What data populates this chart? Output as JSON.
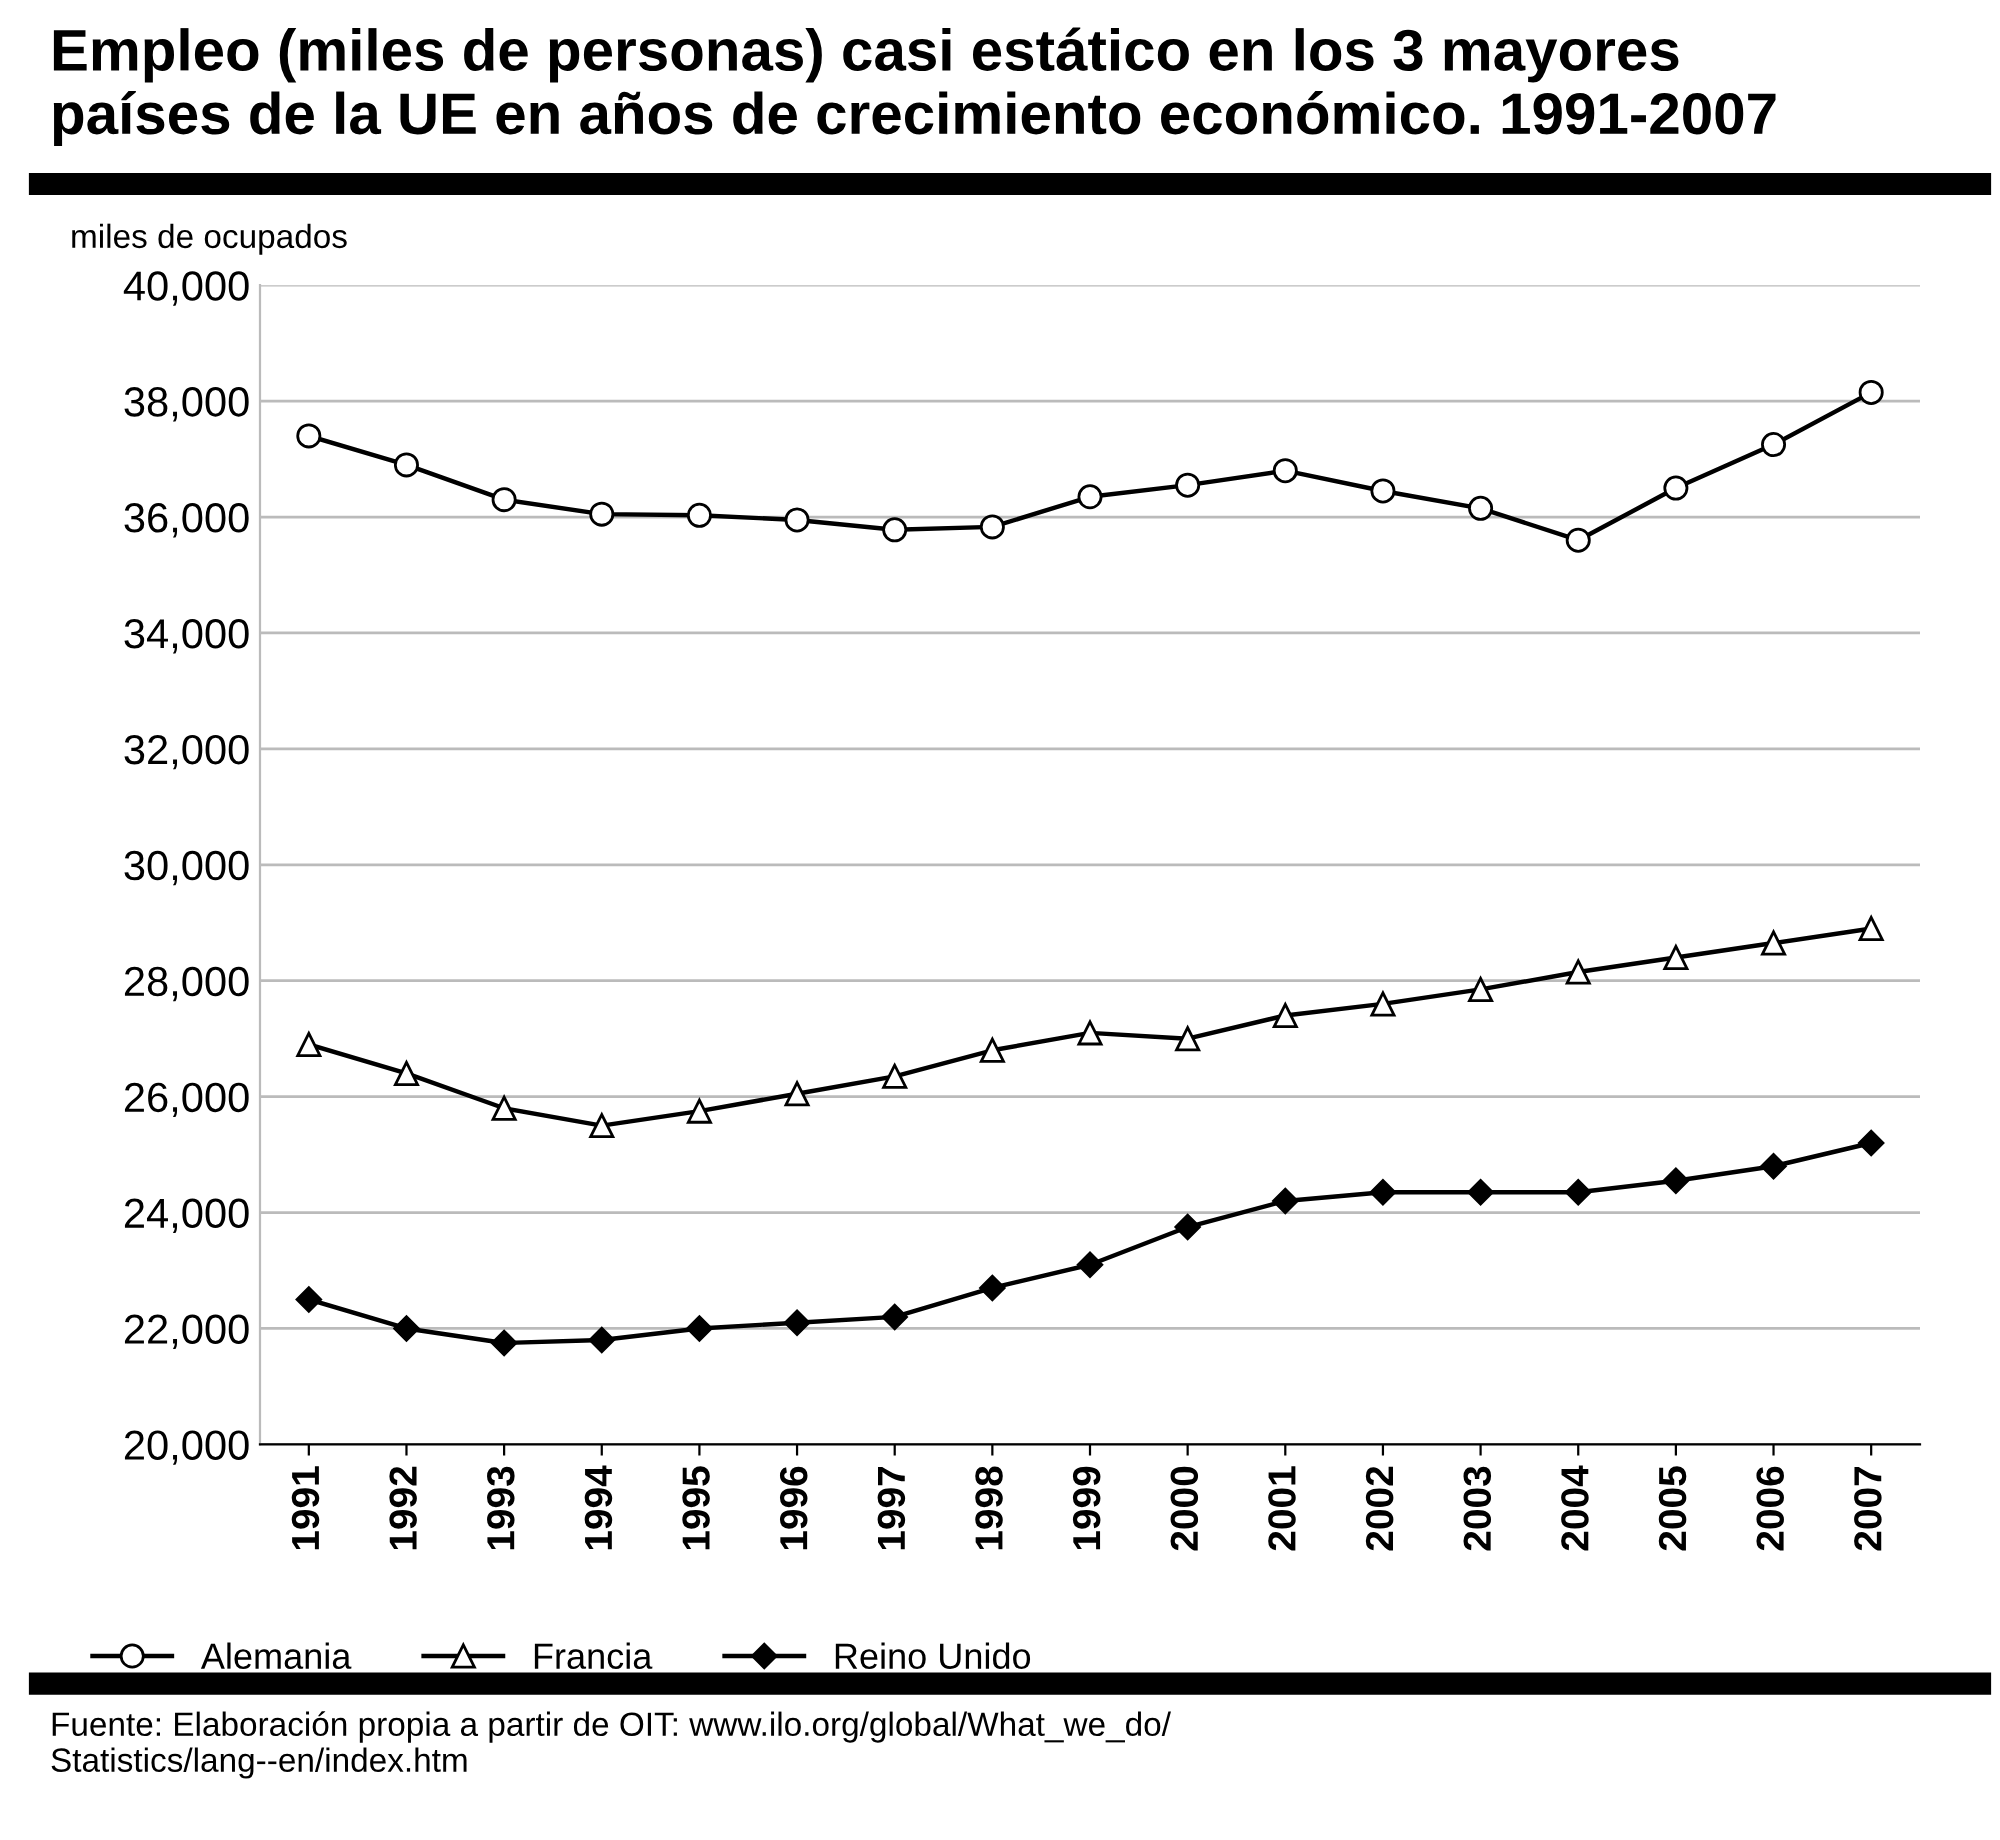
{
  "chart_data": {
    "type": "line",
    "title": "Empleo (miles de personas) casi estático en los 3 mayores\npaíses de la UE en años de crecimiento económico. 1991-2007",
    "ylabel": "miles de ocupados",
    "categories": [
      "1991",
      "1992",
      "1993",
      "1994",
      "1995",
      "1996",
      "1997",
      "1998",
      "1999",
      "2000",
      "2001",
      "2002",
      "2003",
      "2004",
      "2005",
      "2006",
      "2007"
    ],
    "series": [
      {
        "name": "Alemania",
        "color": "#000000",
        "marker": "circle",
        "values": [
          37400,
          36900,
          36300,
          36050,
          36030,
          35950,
          35780,
          35830,
          36350,
          36550,
          36800,
          36450,
          36150,
          35600,
          36500,
          37250,
          38150
        ]
      },
      {
        "name": "Francia",
        "color": "#000000",
        "marker": "triangle",
        "values": [
          26900,
          26400,
          25800,
          25500,
          25750,
          26050,
          26350,
          26800,
          27100,
          27000,
          27400,
          27600,
          27850,
          28150,
          28400,
          28650,
          28900
        ]
      },
      {
        "name": "Reino Unido",
        "color": "#000000",
        "marker": "diamond",
        "values": [
          22500,
          22000,
          21750,
          21800,
          22000,
          22100,
          22200,
          22700,
          23100,
          23750,
          24200,
          24350,
          24350,
          24350,
          24550,
          24800,
          25200
        ]
      }
    ],
    "ylim": [
      20000,
      40000
    ],
    "yticks": [
      {
        "value": 20000,
        "label": "20,000"
      },
      {
        "value": 22000,
        "label": "22,000"
      },
      {
        "value": 24000,
        "label": "24,000"
      },
      {
        "value": 26000,
        "label": "26,000"
      },
      {
        "value": 28000,
        "label": "28,000"
      },
      {
        "value": 30000,
        "label": "30,000"
      },
      {
        "value": 32000,
        "label": "32,000"
      },
      {
        "value": 34000,
        "label": "34,000"
      },
      {
        "value": 36000,
        "label": "36,000"
      },
      {
        "value": 38000,
        "label": "38,000"
      },
      {
        "value": 40000,
        "label": "40,000"
      }
    ],
    "grid": "y",
    "legend": "bottom",
    "line_style": "solid",
    "annotations": [
      "Fuente: Elaboración propia a partir de OIT: www.ilo.org/global/What_we_do/\nStatistics/lang--en/index.htm"
    ]
  }
}
